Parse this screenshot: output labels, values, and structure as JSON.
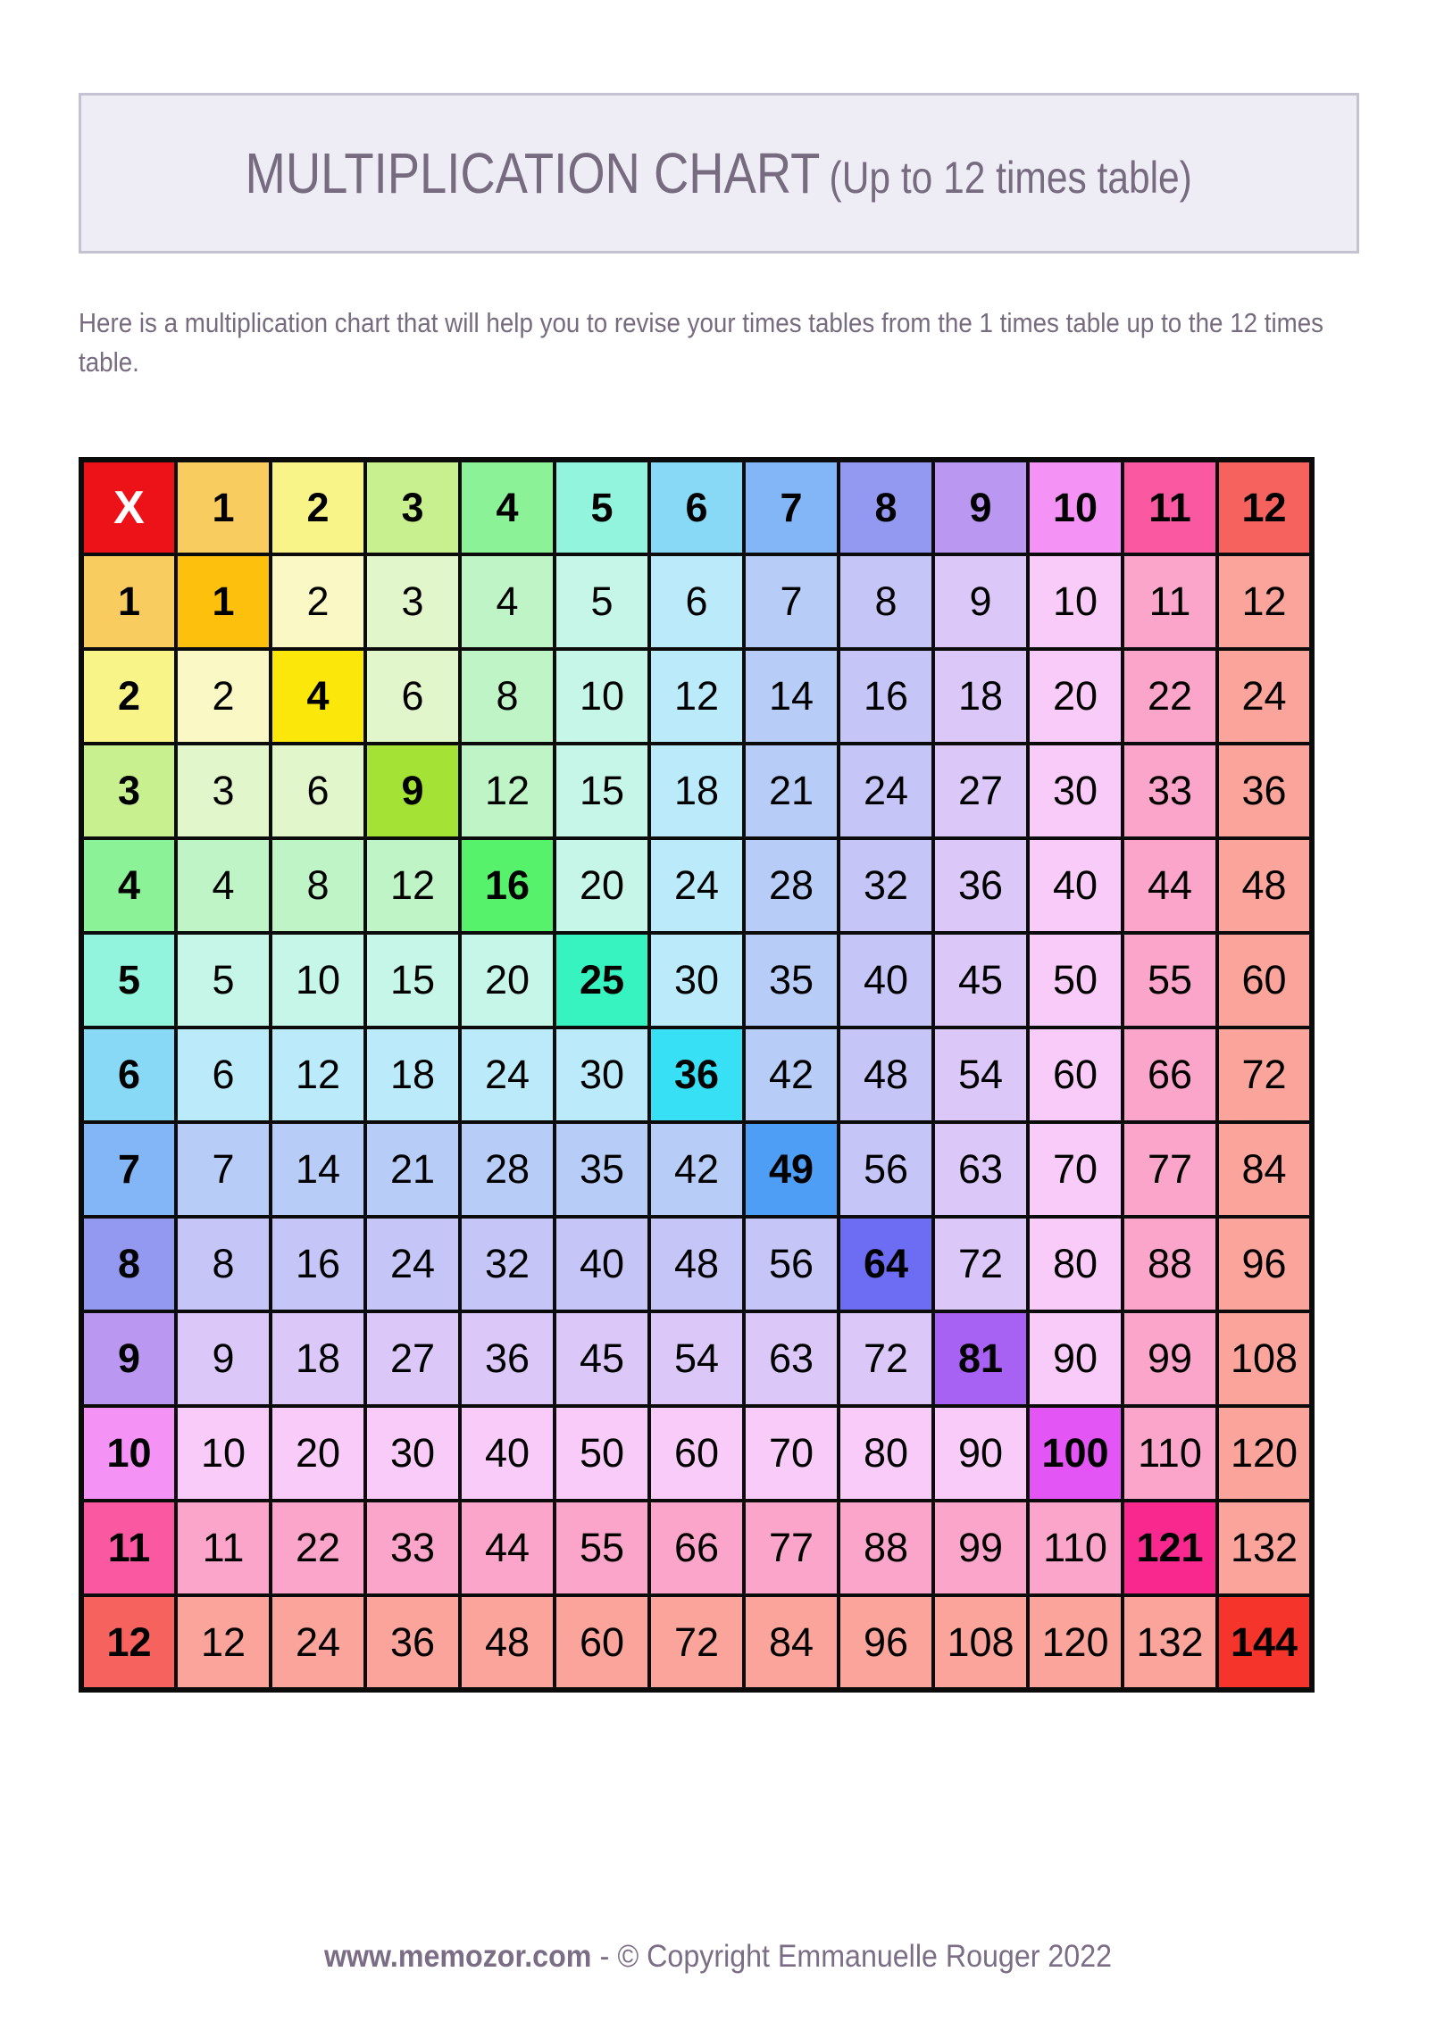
{
  "header": {
    "title_main": "MULTIPLICATION CHART",
    "title_sub": "(Up to 12 times table)"
  },
  "intro": {
    "text": "Here is a multiplication chart that will help you to revise your times tables from the 1 times table up to the 12 times table."
  },
  "chart_data": {
    "type": "table",
    "title": "MULTIPLICATION CHART (Up to 12 times table)",
    "corner_label": "X",
    "column_headers": [
      "1",
      "2",
      "3",
      "4",
      "5",
      "6",
      "7",
      "8",
      "9",
      "10",
      "11",
      "12"
    ],
    "row_headers": [
      "1",
      "2",
      "3",
      "4",
      "5",
      "6",
      "7",
      "8",
      "9",
      "10",
      "11",
      "12"
    ],
    "rows": [
      [
        1,
        2,
        3,
        4,
        5,
        6,
        7,
        8,
        9,
        10,
        11,
        12
      ],
      [
        2,
        4,
        6,
        8,
        10,
        12,
        14,
        16,
        18,
        20,
        22,
        24
      ],
      [
        3,
        6,
        9,
        12,
        15,
        18,
        21,
        24,
        27,
        30,
        33,
        36
      ],
      [
        4,
        8,
        12,
        16,
        20,
        24,
        28,
        32,
        36,
        40,
        44,
        48
      ],
      [
        5,
        10,
        15,
        20,
        25,
        30,
        35,
        40,
        45,
        50,
        55,
        60
      ],
      [
        6,
        12,
        18,
        24,
        30,
        36,
        42,
        48,
        54,
        60,
        66,
        72
      ],
      [
        7,
        14,
        21,
        28,
        35,
        42,
        49,
        56,
        63,
        70,
        77,
        84
      ],
      [
        8,
        16,
        24,
        32,
        40,
        48,
        56,
        64,
        72,
        80,
        88,
        96
      ],
      [
        9,
        18,
        27,
        36,
        45,
        54,
        63,
        72,
        81,
        90,
        99,
        108
      ],
      [
        10,
        20,
        30,
        40,
        50,
        60,
        70,
        80,
        90,
        100,
        110,
        120
      ],
      [
        11,
        22,
        33,
        44,
        55,
        66,
        77,
        88,
        99,
        110,
        121,
        132
      ],
      [
        12,
        24,
        36,
        48,
        60,
        72,
        84,
        96,
        108,
        120,
        132,
        144
      ]
    ],
    "colors": {
      "corner_bg": "#EC1218",
      "corner_text": "#FFFFFF",
      "grid_line": "#0B0B0B",
      "cell_text": "#000000",
      "header_bg": [
        "#F9CC60",
        "#F8F487",
        "#C9F08F",
        "#8CF298",
        "#93F4DE",
        "#87D9F6",
        "#82B6F6",
        "#9398F0",
        "#BA97F0",
        "#F493F5",
        "#FB58A2",
        "#F6635F"
      ],
      "diagonal_bg": [
        "#FCC00D",
        "#FCE70A",
        "#A4E336",
        "#57F26B",
        "#37F3BF",
        "#38E0F6",
        "#4F9EF6",
        "#6D6DF3",
        "#A761F3",
        "#E355F5",
        "#F9288E",
        "#F5342C"
      ],
      "pastel_bg": [
        "#FBDC82",
        "#FAF8C5",
        "#E1F6CB",
        "#BFF4C6",
        "#C5F6E8",
        "#BBEBFA",
        "#B7CDF8",
        "#C5C6F7",
        "#DBC8F8",
        "#F8CBF8",
        "#FAA5C9",
        "#FAA49B"
      ]
    }
  },
  "footer": {
    "site": "www.memozor.com",
    "separator": "-",
    "copyright": "© Copyright Emmanuelle Rouger 2022"
  },
  "theme": {
    "title_box_bg": "#EEEDF5",
    "title_box_border": "#C4C2D1",
    "text_color": "#776B80",
    "footer_color": "#7A6D85"
  }
}
